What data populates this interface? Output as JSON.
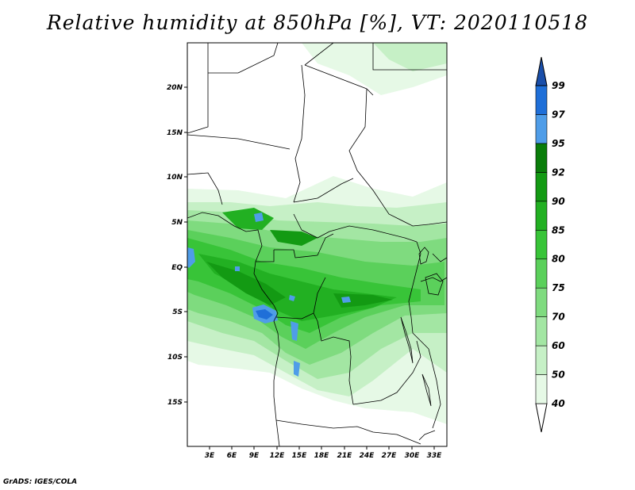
{
  "title": "Relative humidity at 850hPa [%], VT: 2020110518",
  "credit": "GrADS: IGES/COLA",
  "map": {
    "lat_labels": [
      "20N",
      "15N",
      "10N",
      "5N",
      "EQ",
      "5S",
      "10S",
      "15S"
    ],
    "lon_labels": [
      "3E",
      "6E",
      "9E",
      "12E",
      "15E",
      "18E",
      "21E",
      "24E",
      "27E",
      "30E",
      "33E"
    ]
  },
  "colorbar": {
    "levels": [
      "40",
      "50",
      "60",
      "70",
      "75",
      "80",
      "85",
      "90",
      "92",
      "95",
      "97",
      "99"
    ],
    "colors": [
      "#ffffff",
      "#e6f9e6",
      "#c6f0c6",
      "#a3e6a3",
      "#7fdb7f",
      "#5bd05b",
      "#38c438",
      "#22b022",
      "#139a13",
      "#0a7d0a",
      "#4f9de8",
      "#1f6fd8",
      "#1a4faa"
    ]
  }
}
